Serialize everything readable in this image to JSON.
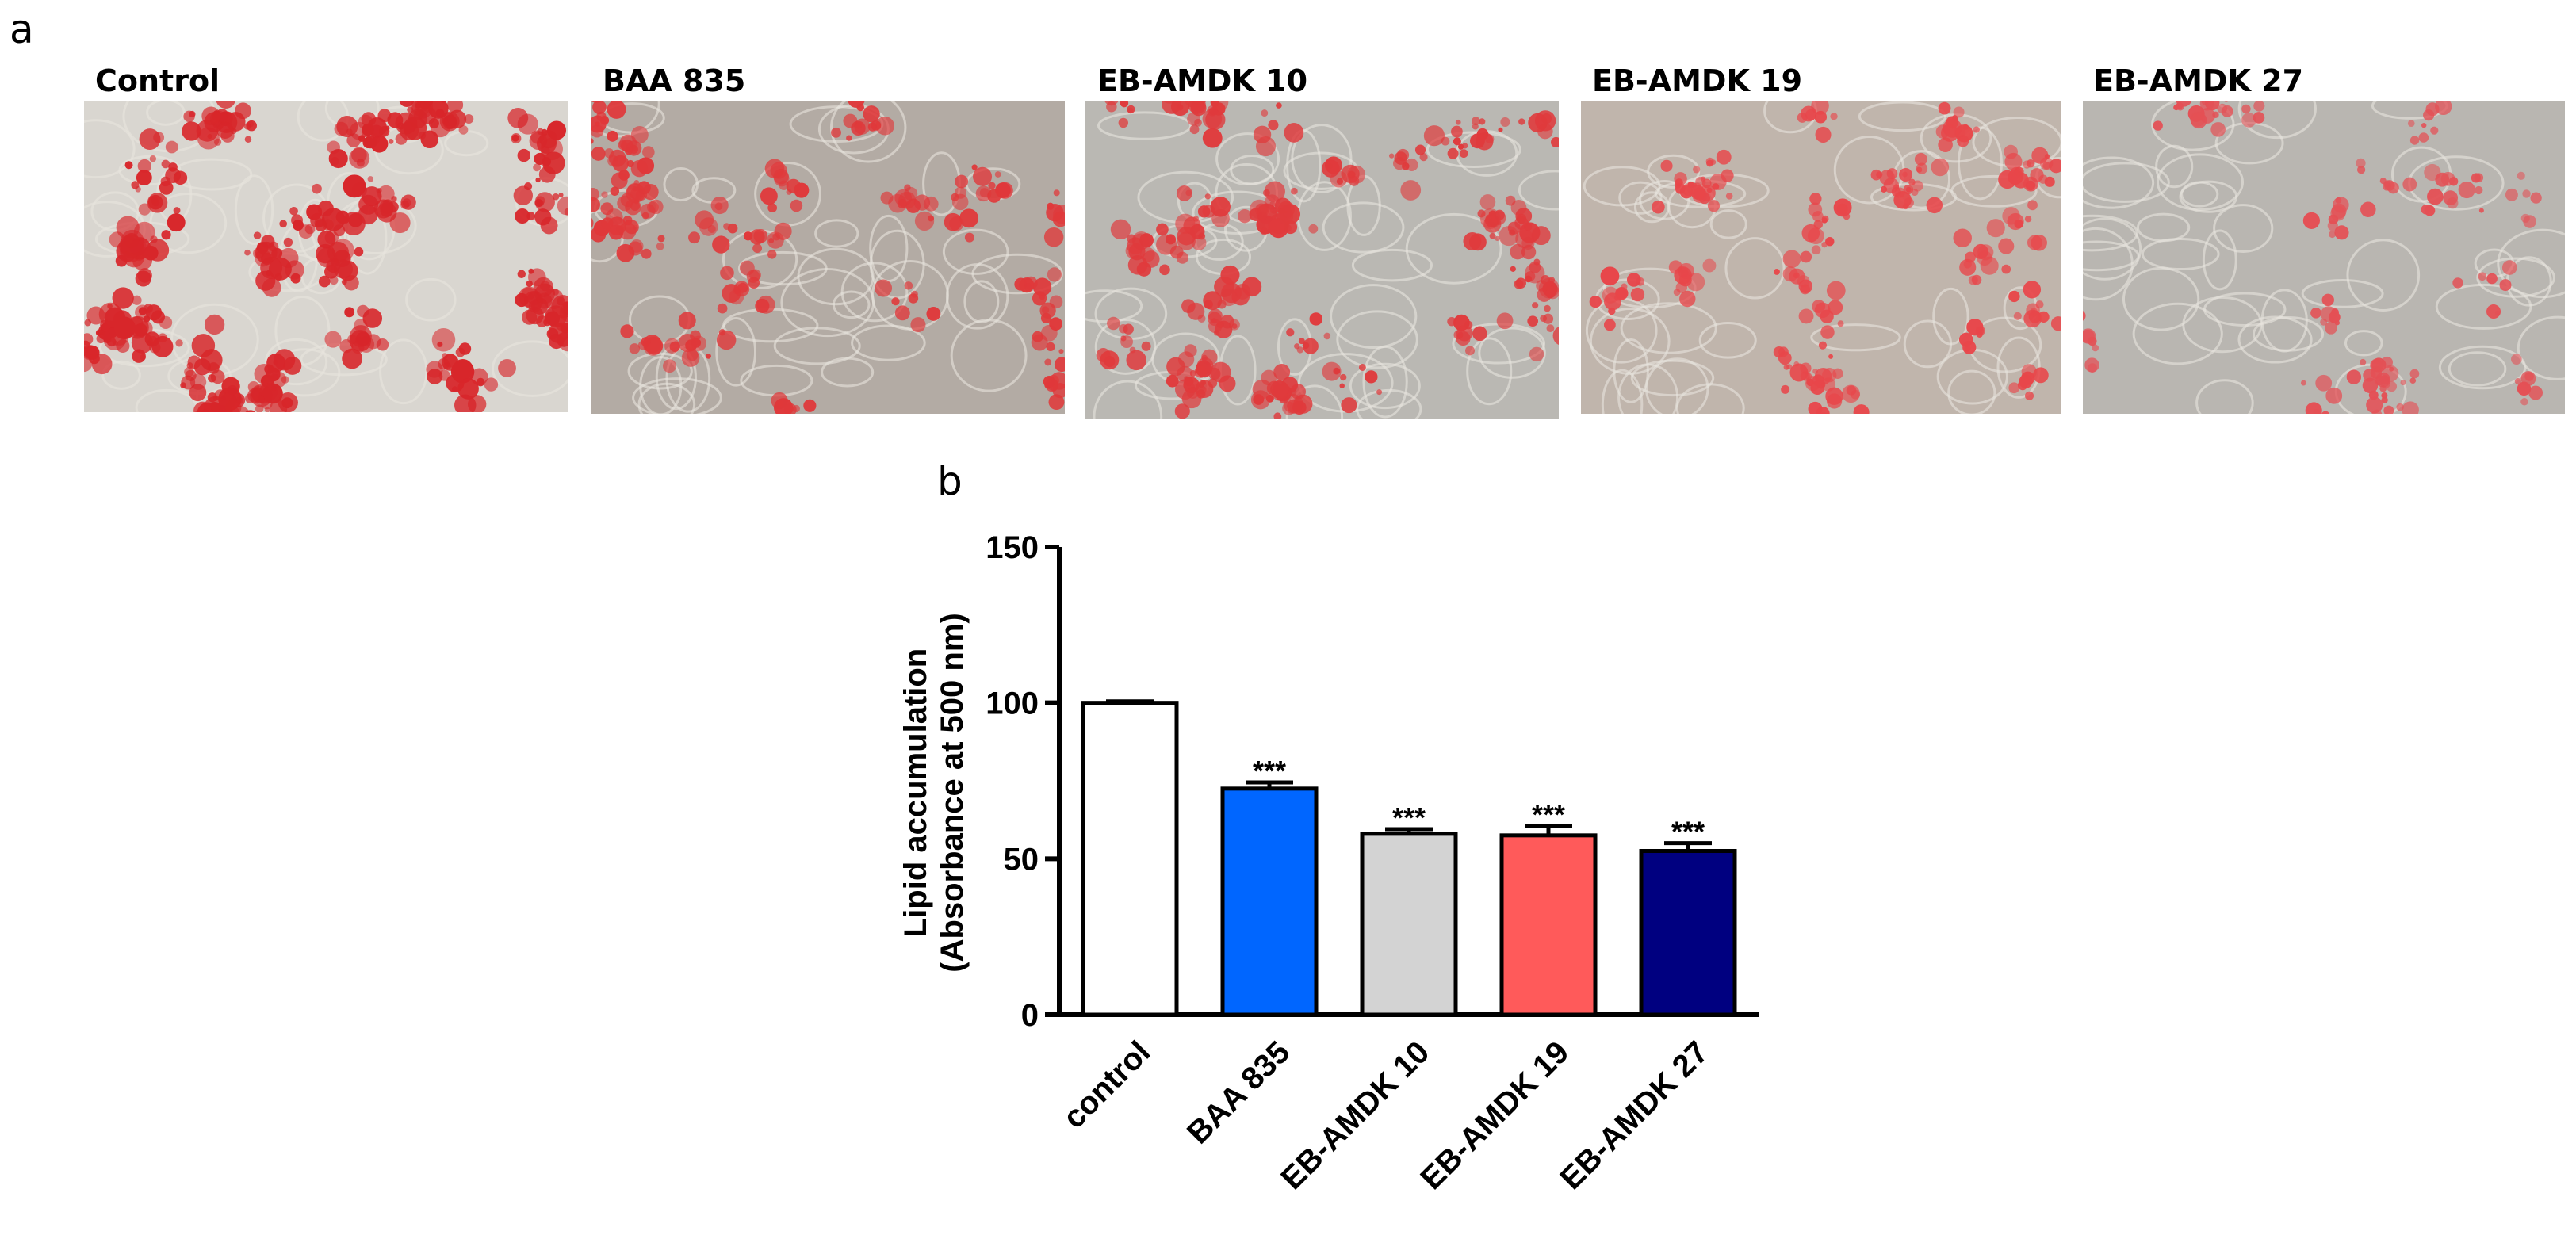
{
  "panels": {
    "a": "a",
    "b": "b"
  },
  "micrographs": [
    {
      "label": "Control",
      "stain_color": "#d8262a",
      "density": 1.0
    },
    {
      "label": "BAA 835",
      "stain_color": "#e0383a",
      "density": 0.55
    },
    {
      "label": "EB-AMDK 10",
      "stain_color": "#e03a3c",
      "density": 0.7
    },
    {
      "label": "EB-AMDK 19",
      "stain_color": "#e8464a",
      "density": 0.5
    },
    {
      "label": "EB-AMDK 27",
      "stain_color": "#e45055",
      "density": 0.3
    }
  ],
  "chart_data": {
    "type": "bar",
    "title": "",
    "xlabel": "",
    "ylabel": "Lipid accumulation\n(Absorbance at 500 nm)",
    "ylabel_lines": [
      "Lipid accumulation",
      "(Absorbance at 500 nm)"
    ],
    "ylim": [
      0,
      150
    ],
    "yticks": [
      0,
      50,
      100,
      150
    ],
    "ytick_labels": [
      "0",
      "50",
      "100",
      "150"
    ],
    "categories": [
      "control",
      "BAA 835",
      "EB-AMDK 10",
      "EB-AMDK 19",
      "EB-AMDK 27"
    ],
    "values": [
      100,
      72.5,
      58,
      57.5,
      52.5
    ],
    "errors": [
      0.5,
      2,
      1.5,
      3,
      2.5
    ],
    "annotations": [
      "",
      "***",
      "***",
      "***",
      "***"
    ],
    "colors": [
      "#ffffff",
      "#0066ff",
      "#d3d3d3",
      "#ff5a5a",
      "#000080"
    ],
    "grid": false
  }
}
